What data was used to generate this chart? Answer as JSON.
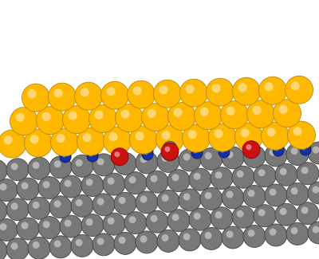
{
  "background_color": "#ffffff",
  "gold_color": "#FFB800",
  "gold_edge": "#B8860B",
  "blue_color": "#1530A0",
  "blue_edge": "#0a1870",
  "silver_color": "#787878",
  "silver_edge": "#404040",
  "red_color": "#CC1111",
  "red_edge": "#880000",
  "figsize": [
    4.0,
    3.25
  ],
  "dpi": 100,
  "xlim": [
    0,
    400
  ],
  "ylim": [
    0,
    325
  ]
}
